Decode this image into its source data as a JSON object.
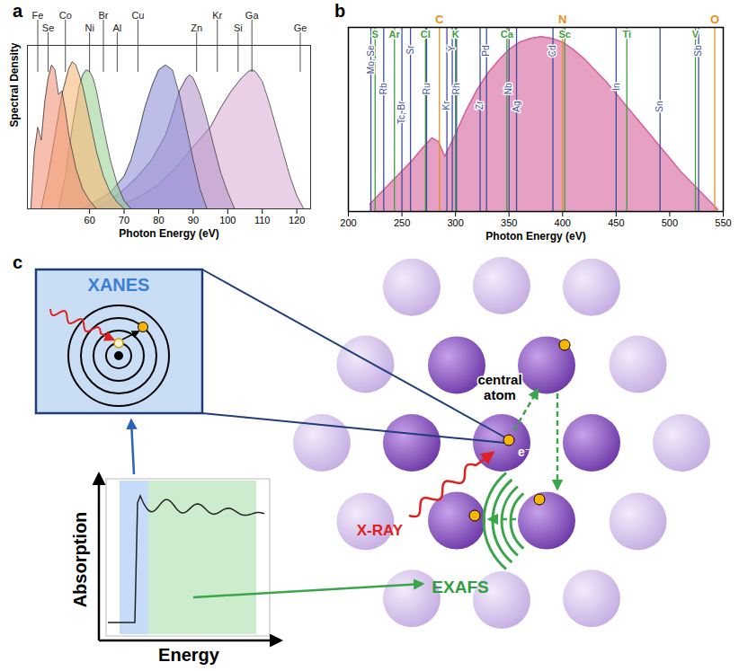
{
  "chart_data": [
    {
      "type": "area",
      "label": "a",
      "x_label": "Photon Energy (eV)",
      "y_label": "Spectral Density",
      "xlim": [
        42,
        124
      ],
      "xticks": [
        60,
        70,
        80,
        90,
        100,
        110,
        120
      ],
      "ylim": [
        0,
        1
      ],
      "tick_labels": "x",
      "series": [
        {
          "color": "#dcb0d6",
          "x": [
            66,
            70,
            75,
            80,
            85,
            90,
            95,
            98,
            101,
            104,
            106,
            107,
            108,
            110,
            112,
            114,
            116,
            118,
            120,
            122
          ],
          "values": [
            0,
            0.03,
            0.08,
            0.15,
            0.25,
            0.38,
            0.5,
            0.62,
            0.72,
            0.8,
            0.84,
            0.85,
            0.84,
            0.78,
            0.65,
            0.5,
            0.35,
            0.2,
            0.08,
            0
          ]
        },
        {
          "color": "#b796cc",
          "x": [
            62,
            66,
            70,
            74,
            78,
            82,
            84,
            86,
            88,
            89,
            90,
            92,
            94,
            96,
            98,
            100,
            102
          ],
          "values": [
            0,
            0.05,
            0.12,
            0.2,
            0.3,
            0.45,
            0.58,
            0.72,
            0.8,
            0.82,
            0.8,
            0.7,
            0.55,
            0.38,
            0.22,
            0.1,
            0
          ]
        },
        {
          "color": "#8f92d8",
          "x": [
            58,
            62,
            66,
            70,
            72,
            74,
            76,
            78,
            80,
            82,
            84,
            86,
            88,
            90,
            92,
            94
          ],
          "values": [
            0,
            0.05,
            0.1,
            0.2,
            0.3,
            0.45,
            0.62,
            0.75,
            0.85,
            0.88,
            0.85,
            0.7,
            0.5,
            0.3,
            0.12,
            0
          ]
        },
        {
          "color": "#9fd49a",
          "x": [
            51,
            53,
            55,
            57,
            58,
            59,
            60,
            61,
            62,
            64,
            66,
            68,
            70,
            72
          ],
          "values": [
            0,
            0.2,
            0.5,
            0.75,
            0.82,
            0.85,
            0.84,
            0.8,
            0.72,
            0.5,
            0.3,
            0.15,
            0.05,
            0
          ]
        },
        {
          "color": "#f6b878",
          "x": [
            46,
            48,
            50,
            52,
            54,
            55,
            56,
            57,
            58,
            60,
            62,
            64,
            66,
            68,
            70
          ],
          "values": [
            0,
            0.2,
            0.45,
            0.7,
            0.86,
            0.9,
            0.88,
            0.82,
            0.75,
            0.55,
            0.35,
            0.2,
            0.1,
            0.04,
            0
          ]
        },
        {
          "color": "#f0957a",
          "x": [
            43,
            44,
            45,
            46,
            47,
            48,
            49,
            50,
            51,
            52,
            53,
            54,
            55,
            56,
            58,
            60,
            62
          ],
          "values": [
            0,
            0.35,
            0.5,
            0.42,
            0.65,
            0.8,
            0.88,
            0.85,
            0.7,
            0.72,
            0.6,
            0.45,
            0.35,
            0.25,
            0.12,
            0.05,
            0
          ]
        }
      ],
      "element_lines": [
        {
          "color": "#222222",
          "elements": [
            {
              "label": "Fe",
              "x": 45
            },
            {
              "label": "Se",
              "x": 48
            },
            {
              "label": "Co",
              "x": 53
            },
            {
              "label": "Ni",
              "x": 60
            },
            {
              "label": "Br",
              "x": 64
            },
            {
              "label": "Al",
              "x": 68
            },
            {
              "label": "Cu",
              "x": 74
            },
            {
              "label": "Zn",
              "x": 91
            },
            {
              "label": "Kr",
              "x": 97
            },
            {
              "label": "Si",
              "x": 103
            },
            {
              "label": "Ga",
              "x": 107
            },
            {
              "label": "Ge",
              "x": 121
            }
          ]
        }
      ]
    },
    {
      "type": "area",
      "label": "b",
      "x_label": "Photon Energy (eV)",
      "xlim": [
        200,
        550
      ],
      "xticks": [
        200,
        250,
        300,
        350,
        400,
        450,
        500,
        550
      ],
      "ylim": [
        0,
        1
      ],
      "tick_labels": "x",
      "series": [
        {
          "color": "#d6609c",
          "x": [
            220,
            230,
            240,
            250,
            260,
            270,
            278,
            284,
            290,
            300,
            310,
            320,
            330,
            340,
            350,
            360,
            370,
            380,
            390,
            400,
            410,
            420,
            430,
            440,
            450,
            460,
            470,
            480,
            490,
            500,
            510,
            520,
            530,
            540,
            545
          ],
          "values": [
            0.04,
            0.1,
            0.16,
            0.22,
            0.28,
            0.35,
            0.4,
            0.38,
            0.3,
            0.42,
            0.55,
            0.66,
            0.75,
            0.82,
            0.88,
            0.92,
            0.94,
            0.95,
            0.94,
            0.92,
            0.88,
            0.83,
            0.77,
            0.71,
            0.64,
            0.57,
            0.5,
            0.43,
            0.36,
            0.29,
            0.22,
            0.16,
            0.1,
            0.04,
            0.01
          ]
        }
      ],
      "element_lines": [
        {
          "color": "#e8901e",
          "elements": [
            {
              "label": "C",
              "x": 285
            },
            {
              "label": "N",
              "x": 400
            },
            {
              "label": "O",
              "x": 542
            }
          ]
        },
        {
          "color": "#3f9e3f",
          "elements": [
            {
              "label": "S",
              "x": 225
            },
            {
              "label": "Ar",
              "x": 243
            },
            {
              "label": "Cl",
              "x": 272
            },
            {
              "label": "K",
              "x": 300
            },
            {
              "label": "Ca",
              "x": 348
            },
            {
              "label": "Sc",
              "x": 402
            },
            {
              "label": "Ti",
              "x": 460
            },
            {
              "label": "V",
              "x": 524
            }
          ]
        },
        {
          "color": "#3c4f9c",
          "elements": [
            {
              "label": "Mo, Se",
              "x": 221
            },
            {
              "label": "Rb",
              "x": 233
            },
            {
              "label": "Tc, Br",
              "x": 250
            },
            {
              "label": "Sr",
              "x": 258
            },
            {
              "label": "Ru",
              "x": 273
            },
            {
              "label": "Kr",
              "x": 292
            },
            {
              "label": "Y",
              "x": 297
            },
            {
              "label": "Rh",
              "x": 301
            },
            {
              "label": "Zr",
              "x": 323
            },
            {
              "label": "Pd",
              "x": 329
            },
            {
              "label": "Nb",
              "x": 350
            },
            {
              "label": "Ag",
              "x": 357
            },
            {
              "label": "Cd",
              "x": 391
            },
            {
              "label": "In",
              "x": 450
            },
            {
              "label": "Sn",
              "x": 491
            },
            {
              "label": "Sb",
              "x": 527
            }
          ]
        }
      ]
    }
  ],
  "diagram": {
    "label": "c",
    "inset_title": "XANES",
    "atom_label": "central atom",
    "electron_label": "e⁻",
    "beam_label": "X-RAY",
    "scattering_label": "EXAFS",
    "plot_y_label": "Absorption",
    "plot_x_label": "Energy"
  }
}
